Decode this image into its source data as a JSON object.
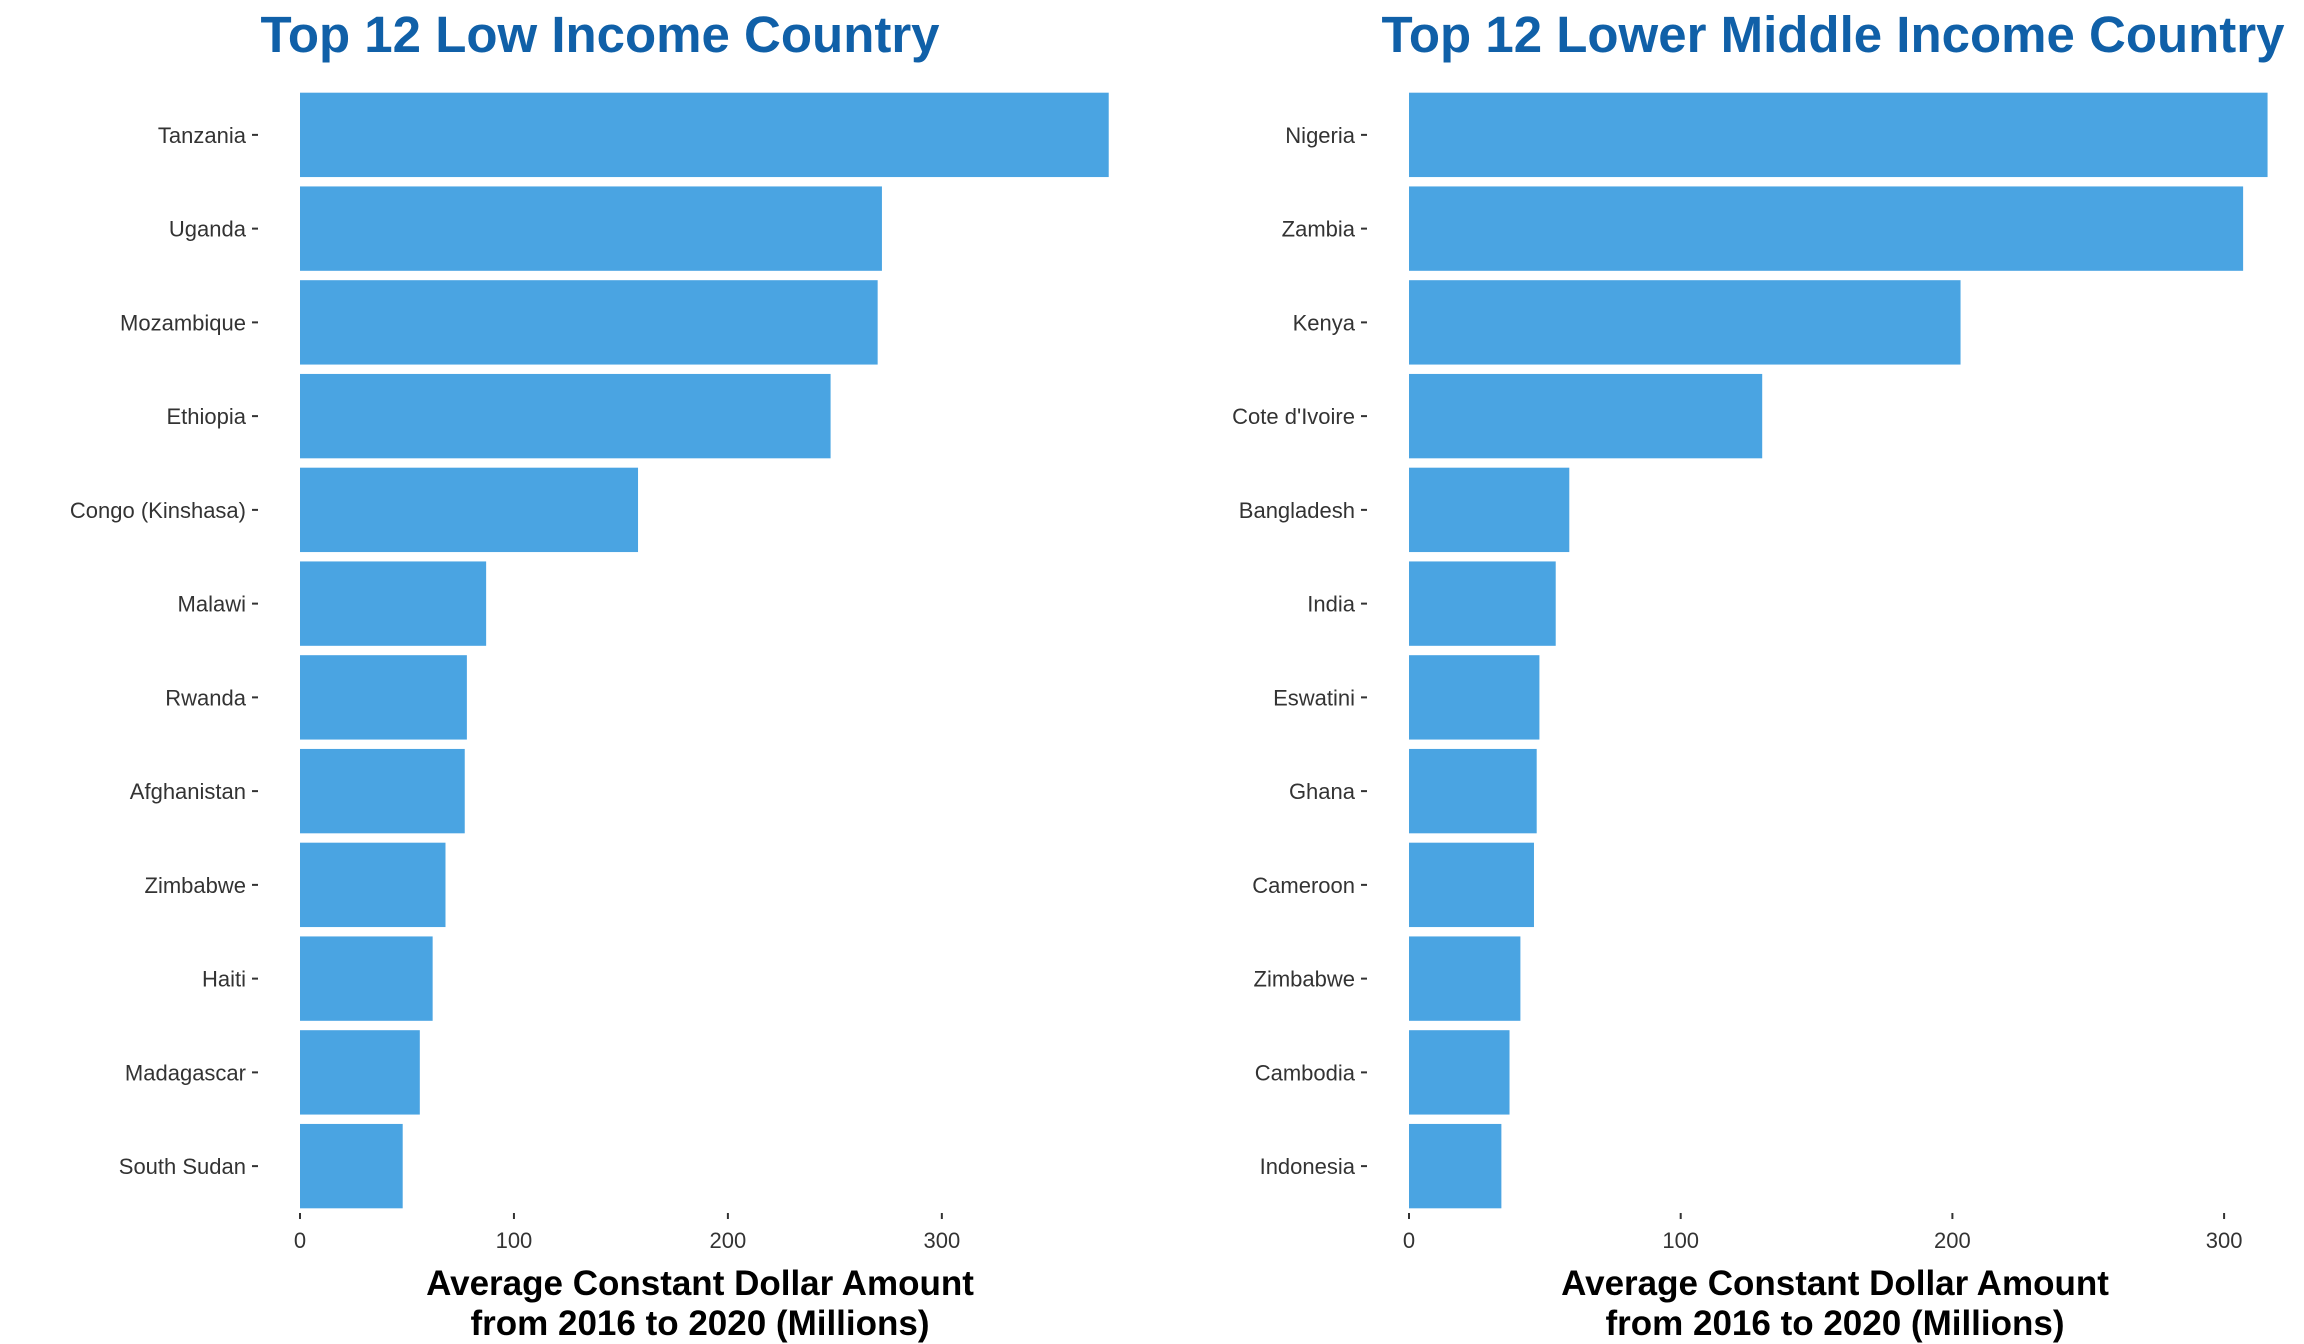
{
  "colors": {
    "bar": "#4AA4E2",
    "title": "#1060A8",
    "axis_text": "#333333",
    "axis_title": "#000000",
    "background": "#ffffff"
  },
  "chart_data": [
    {
      "type": "bar",
      "orientation": "horizontal",
      "title": "Top 12 Low Income Country",
      "xlabel_line1": "Average Constant Dollar Amount",
      "xlabel_line2": "from 2016 to 2020 (Millions)",
      "ylabel": "",
      "categories": [
        "Tanzania",
        "Uganda",
        "Mozambique",
        "Ethiopia",
        "Congo (Kinshasa)",
        "Malawi",
        "Rwanda",
        "Afghanistan",
        "Zimbabwe",
        "Haiti",
        "Madagascar",
        "South Sudan"
      ],
      "values": [
        378,
        272,
        270,
        248,
        158,
        87,
        78,
        77,
        68,
        62,
        56,
        48
      ],
      "xlim": [
        0,
        380
      ],
      "xticks": [
        0,
        100,
        200,
        300
      ],
      "grid": false,
      "legend": "none"
    },
    {
      "type": "bar",
      "orientation": "horizontal",
      "title": "Top 12 Lower Middle Income Country",
      "xlabel_line1": "Average Constant Dollar Amount",
      "xlabel_line2": "from 2016 to 2020 (Millions)",
      "ylabel": "",
      "categories": [
        "Nigeria",
        "Zambia",
        "Kenya",
        "Cote d'Ivoire",
        "Bangladesh",
        "India",
        "Eswatini",
        "Ghana",
        "Cameroon",
        "Zimbabwe",
        "Cambodia",
        "Indonesia"
      ],
      "values": [
        316,
        307,
        203,
        130,
        59,
        54,
        48,
        47,
        46,
        41,
        37,
        34
      ],
      "xlim": [
        0,
        318
      ],
      "xticks": [
        0,
        100,
        200,
        300
      ],
      "grid": false,
      "legend": "none"
    }
  ]
}
